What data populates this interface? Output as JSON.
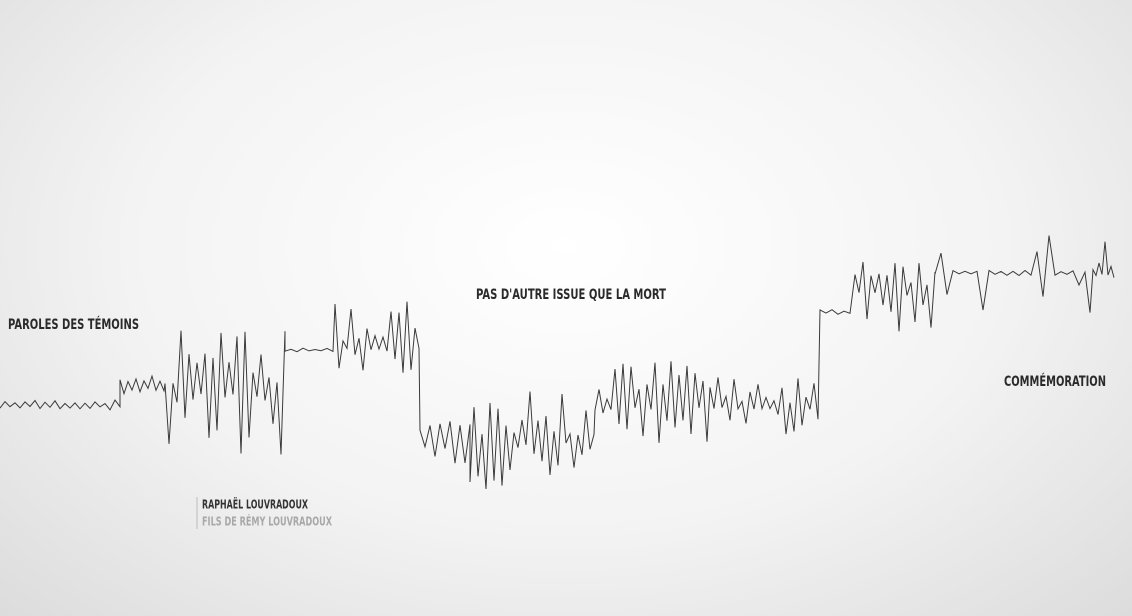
{
  "sections": [
    "PAROLES DES TÉMOINS",
    "PAS D'AUTRE ISSUE QUE LA MORT",
    "COMMÉMORATION"
  ],
  "witness": {
    "name": "RAPHAËL LOUVRADOUX",
    "role": "FILS DE RÉMY LOUVRADOUX"
  }
}
